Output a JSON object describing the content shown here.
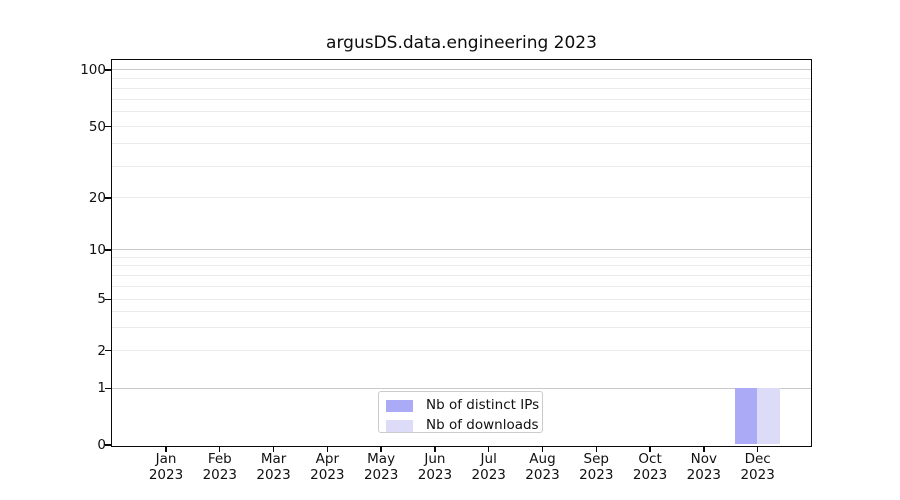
{
  "title": "argusDS.data.engineering 2023",
  "chart_data": {
    "type": "bar",
    "title": "argusDS.data.engineering 2023",
    "xlabel": "",
    "ylabel": "",
    "categories": [
      "Jan 2023",
      "Feb 2023",
      "Mar 2023",
      "Apr 2023",
      "May 2023",
      "Jun 2023",
      "Jul 2023",
      "Aug 2023",
      "Sep 2023",
      "Oct 2023",
      "Nov 2023",
      "Dec 2023"
    ],
    "series": [
      {
        "name": "Nb of distinct IPs",
        "color": "#aaaaf6",
        "values": [
          0,
          0,
          0,
          0,
          0,
          0,
          0,
          0,
          0,
          0,
          0,
          1
        ]
      },
      {
        "name": "Nb of downloads",
        "color": "#dcdcf9",
        "values": [
          0,
          0,
          0,
          0,
          0,
          0,
          0,
          0,
          0,
          0,
          0,
          1
        ]
      }
    ],
    "yscale": "symlog",
    "ylim": [
      0,
      112
    ],
    "y_major_ticks": [
      0,
      1,
      2,
      5,
      10,
      20,
      50,
      100
    ],
    "y_major_gridlines": [
      1,
      10,
      100
    ],
    "y_minor_gridlines": [
      2,
      3,
      4,
      5,
      6,
      7,
      8,
      9,
      20,
      30,
      40,
      50,
      60,
      70,
      80,
      90
    ],
    "grid": "horizontal",
    "legend": {
      "position": "lower center",
      "items": [
        {
          "label": "Nb of distinct IPs",
          "color": "#aaaaf6"
        },
        {
          "label": "Nb of downloads",
          "color": "#dcdcf9"
        }
      ]
    }
  }
}
